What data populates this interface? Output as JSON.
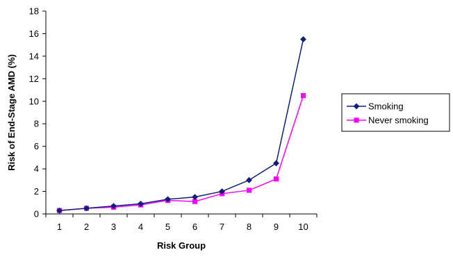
{
  "chart_data": {
    "type": "line",
    "title": "",
    "xlabel": "Risk Group",
    "ylabel": "Risk of End-Stage AMD (%)",
    "x": [
      1,
      2,
      3,
      4,
      5,
      6,
      7,
      8,
      9,
      10
    ],
    "x_tick_labels": [
      "1",
      "2",
      "3",
      "4",
      "5",
      "6",
      "7",
      "8",
      "9",
      "10"
    ],
    "ylim": [
      0,
      18
    ],
    "y_ticks": [
      0,
      2,
      4,
      6,
      8,
      10,
      12,
      14,
      16,
      18
    ],
    "y_tick_labels": [
      "0",
      "2",
      "4",
      "6",
      "8",
      "10",
      "12",
      "14",
      "16",
      "18"
    ],
    "grid": false,
    "legend_position": "right",
    "series": [
      {
        "name": "Smoking",
        "color": "#0f1f7a",
        "marker": "diamond",
        "values": [
          0.3,
          0.5,
          0.7,
          0.9,
          1.3,
          1.5,
          2.0,
          3.0,
          4.5,
          15.5
        ]
      },
      {
        "name": "Never smoking",
        "color": "#ff00ff",
        "marker": "square",
        "values": [
          0.3,
          0.5,
          0.6,
          0.8,
          1.2,
          1.1,
          1.8,
          2.1,
          3.1,
          10.5
        ]
      }
    ]
  }
}
